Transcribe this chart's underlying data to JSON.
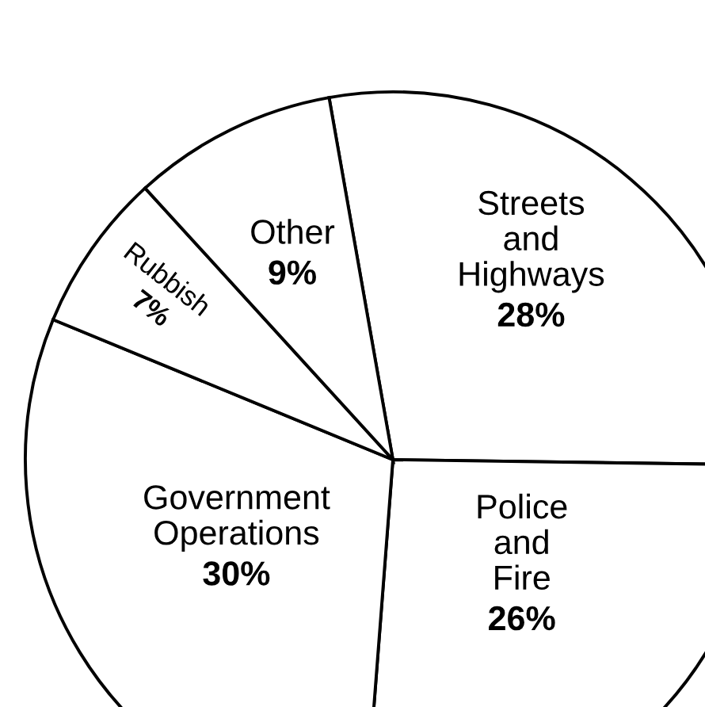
{
  "chart_data": {
    "type": "pie",
    "categories": [
      "Streets\nand\nHighways",
      "Police\nand\nFire",
      "Government\nOperations",
      "Rubbish",
      "Other"
    ],
    "values": [
      28,
      26,
      30,
      7,
      9
    ],
    "value_labels": [
      "28%",
      "26%",
      "30%",
      "7%",
      "9%"
    ],
    "colors": [
      "#ffffff",
      "#ffffff",
      "#ffffff",
      "#ffffff",
      "#ffffff"
    ],
    "legend": false
  }
}
